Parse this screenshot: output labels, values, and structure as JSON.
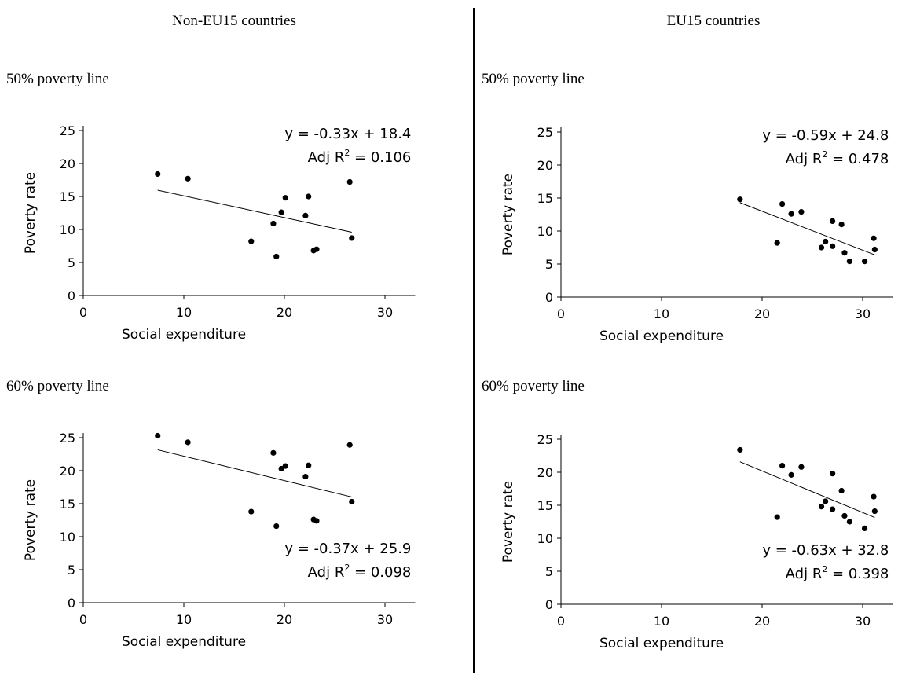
{
  "columns": [
    "Non-EU15 countries",
    "EU15 countries"
  ],
  "rows": [
    "50% poverty line",
    "60% poverty line"
  ],
  "chart_data": [
    {
      "type": "scatter",
      "group": "Non-EU15 countries",
      "subtitle": "50% poverty line",
      "xlabel": "Social expenditure",
      "ylabel": "Poverty rate",
      "xlim": [
        0,
        33
      ],
      "ylim": [
        0,
        25
      ],
      "xticks": [
        0,
        10,
        20,
        30
      ],
      "yticks": [
        0,
        5,
        10,
        15,
        20,
        25
      ],
      "points": [
        [
          7.4,
          18.4
        ],
        [
          10.4,
          17.7
        ],
        [
          16.7,
          8.2
        ],
        [
          18.9,
          10.9
        ],
        [
          19.2,
          5.9
        ],
        [
          19.7,
          12.6
        ],
        [
          20.1,
          14.8
        ],
        [
          22.1,
          12.1
        ],
        [
          22.4,
          15.0
        ],
        [
          22.9,
          6.8
        ],
        [
          23.2,
          7.0
        ],
        [
          26.5,
          17.2
        ],
        [
          26.7,
          8.7
        ]
      ],
      "trendline": {
        "slope": -0.33,
        "intercept": 18.4,
        "x_range": [
          7.4,
          26.7
        ]
      },
      "equation": "y = -0.33x + 18.4",
      "r2_label": "Adj R",
      "r2_sup": "2",
      "r2_value": " = 0.106",
      "annotation_position": "top-right"
    },
    {
      "type": "scatter",
      "group": "EU15 countries",
      "subtitle": "50% poverty line",
      "xlabel": "Social expenditure",
      "ylabel": "Poverty rate",
      "xlim": [
        0,
        33
      ],
      "ylim": [
        0,
        25
      ],
      "xticks": [
        0,
        10,
        20,
        30
      ],
      "yticks": [
        0,
        5,
        10,
        15,
        20,
        25
      ],
      "points": [
        [
          17.8,
          14.8
        ],
        [
          21.5,
          8.2
        ],
        [
          22.0,
          14.1
        ],
        [
          22.9,
          12.6
        ],
        [
          23.9,
          12.9
        ],
        [
          25.9,
          7.5
        ],
        [
          26.3,
          8.4
        ],
        [
          27.0,
          11.5
        ],
        [
          27.0,
          7.7
        ],
        [
          27.9,
          11.0
        ],
        [
          28.2,
          6.7
        ],
        [
          28.7,
          5.4
        ],
        [
          30.2,
          5.4
        ],
        [
          31.1,
          8.9
        ],
        [
          31.2,
          7.2
        ]
      ],
      "trendline": {
        "slope": -0.59,
        "intercept": 24.8,
        "x_range": [
          17.8,
          31.2
        ]
      },
      "equation": "y = -0.59x + 24.8",
      "r2_label": "Adj R",
      "r2_sup": "2",
      "r2_value": " = 0.478",
      "annotation_position": "top-right"
    },
    {
      "type": "scatter",
      "group": "Non-EU15 countries",
      "subtitle": "60% poverty line",
      "xlabel": "Social expenditure",
      "ylabel": "Poverty rate",
      "xlim": [
        0,
        33
      ],
      "ylim": [
        0,
        25
      ],
      "xticks": [
        0,
        10,
        20,
        30
      ],
      "yticks": [
        0,
        5,
        10,
        15,
        20,
        25
      ],
      "points": [
        [
          7.4,
          25.3
        ],
        [
          10.4,
          24.3
        ],
        [
          16.7,
          13.8
        ],
        [
          18.9,
          22.7
        ],
        [
          19.2,
          11.6
        ],
        [
          19.7,
          20.3
        ],
        [
          20.1,
          20.7
        ],
        [
          22.1,
          19.1
        ],
        [
          22.4,
          20.8
        ],
        [
          22.9,
          12.6
        ],
        [
          23.2,
          12.4
        ],
        [
          26.5,
          23.9
        ],
        [
          26.7,
          15.3
        ]
      ],
      "trendline": {
        "slope": -0.37,
        "intercept": 25.9,
        "x_range": [
          7.4,
          26.7
        ]
      },
      "equation": "y = -0.37x + 25.9",
      "r2_label": "Adj R",
      "r2_sup": "2",
      "r2_value": " = 0.098",
      "annotation_position": "bottom-right"
    },
    {
      "type": "scatter",
      "group": "EU15 countries",
      "subtitle": "60% poverty line",
      "xlabel": "Social expenditure",
      "ylabel": "Poverty rate",
      "xlim": [
        0,
        33
      ],
      "ylim": [
        0,
        25
      ],
      "xticks": [
        0,
        10,
        20,
        30
      ],
      "yticks": [
        0,
        5,
        10,
        15,
        20,
        25
      ],
      "points": [
        [
          17.8,
          23.4
        ],
        [
          21.5,
          13.2
        ],
        [
          22.0,
          21.0
        ],
        [
          22.9,
          19.6
        ],
        [
          23.9,
          20.8
        ],
        [
          25.9,
          14.8
        ],
        [
          26.3,
          15.6
        ],
        [
          27.0,
          14.4
        ],
        [
          27.0,
          19.8
        ],
        [
          27.9,
          17.2
        ],
        [
          28.2,
          13.4
        ],
        [
          28.7,
          12.5
        ],
        [
          30.2,
          11.5
        ],
        [
          31.1,
          16.3
        ],
        [
          31.2,
          14.1
        ]
      ],
      "trendline": {
        "slope": -0.63,
        "intercept": 32.8,
        "x_range": [
          17.8,
          31.2
        ]
      },
      "equation": "y = -0.63x + 32.8",
      "r2_label": "Adj R",
      "r2_sup": "2",
      "r2_value": " = 0.398",
      "annotation_position": "bottom-right"
    }
  ]
}
